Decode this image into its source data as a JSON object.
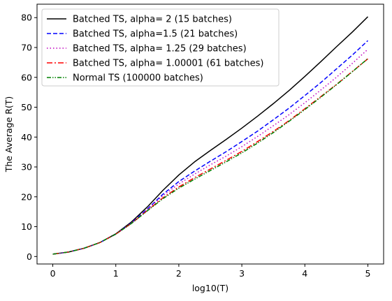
{
  "chart_data": {
    "type": "line",
    "title": "",
    "xlabel": "log10(T)",
    "ylabel": "The Average R(T)",
    "xlim": [
      -0.25,
      5.25
    ],
    "ylim": [
      -2.5,
      84.5
    ],
    "xticks": [
      0,
      1,
      2,
      3,
      4,
      5
    ],
    "yticks": [
      0,
      10,
      20,
      30,
      40,
      50,
      60,
      70,
      80
    ],
    "grid": false,
    "legend_position": "upper-left",
    "x": [
      0,
      0.25,
      0.5,
      0.75,
      1.0,
      1.25,
      1.5,
      1.75,
      2.0,
      2.25,
      2.5,
      2.75,
      3.0,
      3.25,
      3.5,
      3.75,
      4.0,
      4.25,
      4.5,
      4.75,
      5.0
    ],
    "series": [
      {
        "name": "Batched TS, alpha= 2 (15 batches)",
        "color": "#000000",
        "dash": "solid",
        "values": [
          0.8,
          1.5,
          2.8,
          4.7,
          7.6,
          11.6,
          16.6,
          22.2,
          27.3,
          31.7,
          35.5,
          39.2,
          43.0,
          47.0,
          51.2,
          55.6,
          60.3,
          65.2,
          70.2,
          75.1,
          80.3
        ]
      },
      {
        "name": "Batched TS, alpha=1.5 (21 batches)",
        "color": "#0000ff",
        "dash": "dashed",
        "values": [
          0.8,
          1.5,
          2.8,
          4.7,
          7.5,
          11.3,
          15.9,
          20.9,
          25.1,
          28.6,
          31.9,
          35.1,
          38.5,
          42.0,
          45.8,
          49.7,
          53.9,
          58.2,
          62.8,
          67.4,
          72.3
        ]
      },
      {
        "name": "Batched TS, alpha= 1.25 (29 batches)",
        "color": "#bf00bf",
        "dash": "dotted",
        "values": [
          0.8,
          1.5,
          2.8,
          4.7,
          7.5,
          11.2,
          15.7,
          20.4,
          24.3,
          27.6,
          30.7,
          33.6,
          36.8,
          40.2,
          43.8,
          47.5,
          51.5,
          55.7,
          60.0,
          64.6,
          69.4
        ]
      },
      {
        "name": "Batched TS, alpha= 1.00001 (61 batches)",
        "color": "#ff0000",
        "dash": "dashdot",
        "values": [
          0.8,
          1.5,
          2.8,
          4.7,
          7.5,
          11.1,
          15.4,
          19.7,
          23.3,
          26.4,
          29.3,
          32.2,
          35.2,
          38.5,
          41.9,
          45.5,
          49.5,
          53.5,
          57.6,
          61.9,
          66.2
        ]
      },
      {
        "name": "Normal TS (100000 batches)",
        "color": "#008000",
        "dash": "dashdotdot",
        "values": [
          0.8,
          1.5,
          2.8,
          4.7,
          7.5,
          11.1,
          15.3,
          19.4,
          22.9,
          25.9,
          28.8,
          31.7,
          34.7,
          38.0,
          41.5,
          45.3,
          49.2,
          53.3,
          57.5,
          61.8,
          66.3
        ]
      }
    ]
  }
}
